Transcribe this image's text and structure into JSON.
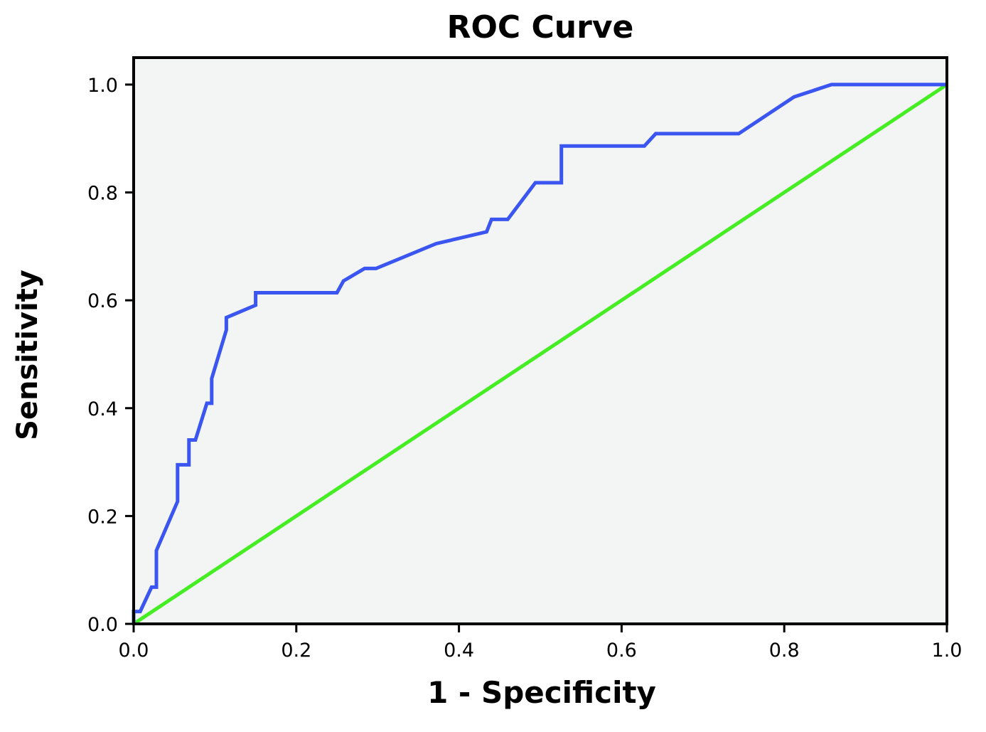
{
  "chart_data": {
    "type": "line",
    "title": "ROC Curve",
    "xlabel": "1 - Specificity",
    "ylabel": "Sensitivity",
    "xlim": [
      0,
      1
    ],
    "ylim": [
      0,
      1.05
    ],
    "x_ticks": [
      "0.0",
      "0.2",
      "0.4",
      "0.6",
      "0.8",
      "1.0"
    ],
    "y_ticks": [
      "0.0",
      "0.2",
      "0.4",
      "0.6",
      "0.8",
      "1.0"
    ],
    "grid": false,
    "legend": "none",
    "series": [
      {
        "color": "#3a55f0",
        "x": [
          0.0,
          0.0,
          0.008,
          0.022,
          0.028,
          0.028,
          0.054,
          0.054,
          0.068,
          0.068,
          0.076,
          0.09,
          0.096,
          0.096,
          0.114,
          0.114,
          0.15,
          0.15,
          0.25,
          0.258,
          0.284,
          0.298,
          0.372,
          0.434,
          0.44,
          0.46,
          0.494,
          0.526,
          0.526,
          0.628,
          0.642,
          0.744,
          0.812,
          0.858,
          0.9,
          1.0
        ],
        "y": [
          0.0,
          0.023,
          0.023,
          0.068,
          0.068,
          0.136,
          0.227,
          0.295,
          0.295,
          0.341,
          0.341,
          0.409,
          0.409,
          0.455,
          0.545,
          0.568,
          0.591,
          0.614,
          0.614,
          0.636,
          0.659,
          0.659,
          0.705,
          0.727,
          0.75,
          0.75,
          0.818,
          0.818,
          0.886,
          0.886,
          0.909,
          0.909,
          0.977,
          1.0,
          1.0,
          1.0
        ]
      },
      {
        "color": "#44ee22",
        "x": [
          0,
          1
        ],
        "y": [
          0,
          1
        ]
      }
    ],
    "colors": {
      "plot_background": "#f2f5f4",
      "axis": "#000000"
    }
  }
}
